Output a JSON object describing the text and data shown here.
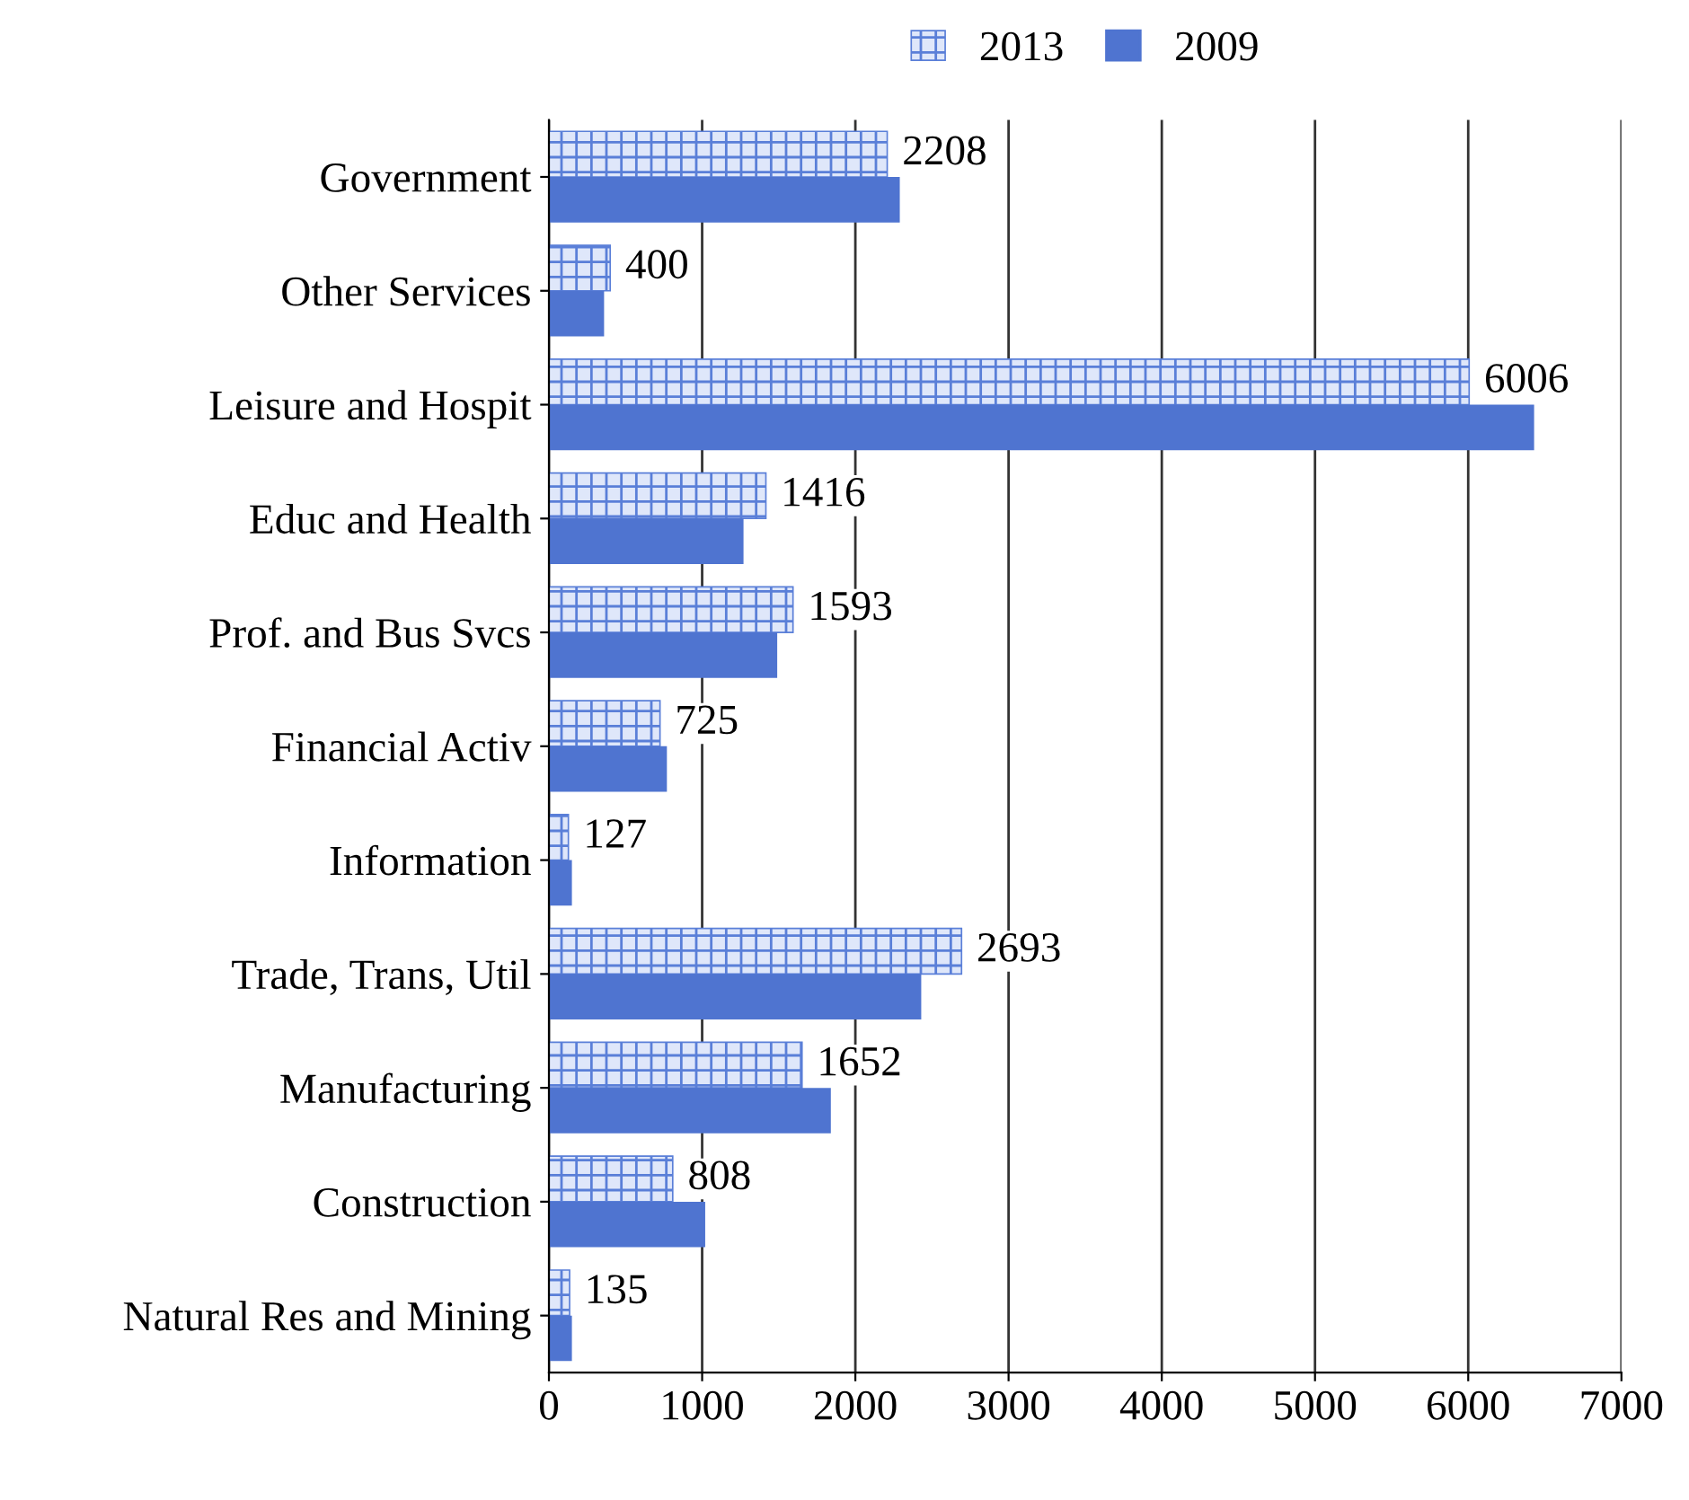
{
  "chart_data": {
    "type": "bar",
    "orientation": "horizontal",
    "categories": [
      "Government",
      "Other Services",
      "Leisure and Hospit",
      "Educ and Health",
      "Prof. and Bus Svcs",
      "Financial Activ",
      "Information",
      "Trade, Trans, Util",
      "Manufacturing",
      "Construction",
      "Natural Res and Mining"
    ],
    "series": [
      {
        "name": "2013",
        "color": "#5a7fd8",
        "values": [
          2208,
          400,
          6006,
          1416,
          1593,
          725,
          127,
          2693,
          1652,
          808,
          135
        ],
        "value_labels": [
          "2208",
          "400",
          "6006",
          "1416",
          "1593",
          "725",
          "127",
          "2693",
          "1652",
          "808",
          "135"
        ]
      },
      {
        "name": "2009",
        "color": "#4f74d0",
        "values": [
          2290,
          360,
          6430,
          1270,
          1490,
          770,
          150,
          2430,
          1840,
          1020,
          150
        ]
      }
    ],
    "xlim": [
      0,
      7000
    ],
    "xticks": [
      0,
      1000,
      2000,
      3000,
      4000,
      5000,
      6000,
      7000
    ],
    "grid": "x",
    "legend": "top"
  }
}
